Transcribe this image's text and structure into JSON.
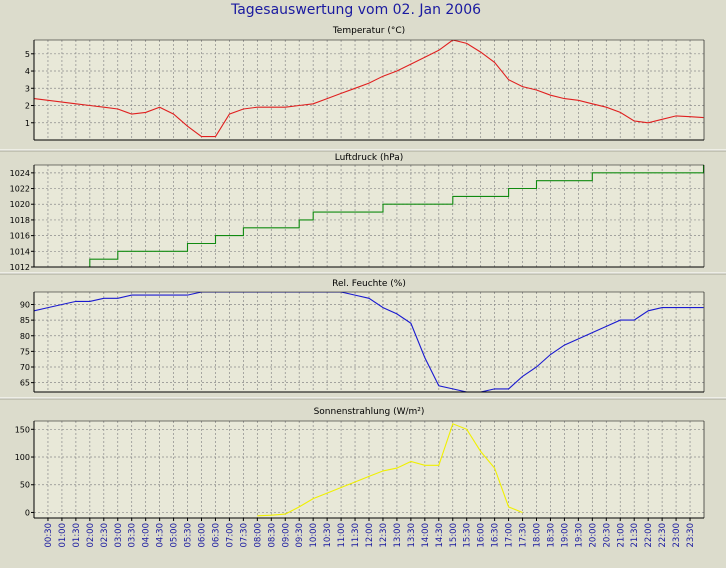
{
  "title": "Tagesauswertung vom 02. Jan 2006",
  "colors": {
    "background": "#dcdccc",
    "plot_background": "#e8e8d8",
    "title_text": "#1a1aa0",
    "axis_text": "#000000",
    "time_label_text": "#1a1aa0",
    "grid": "#8a8a8a"
  },
  "time_labels": [
    "00:30",
    "01:00",
    "01:30",
    "02:00",
    "02:30",
    "03:00",
    "03:30",
    "04:00",
    "04:30",
    "05:00",
    "05:30",
    "06:00",
    "06:30",
    "07:00",
    "07:30",
    "08:00",
    "08:30",
    "09:00",
    "09:30",
    "10:00",
    "10:30",
    "11:00",
    "11:30",
    "12:00",
    "12:30",
    "13:00",
    "13:30",
    "14:00",
    "14:30",
    "15:00",
    "15:30",
    "16:00",
    "16:30",
    "17:00",
    "17:30",
    "18:00",
    "18:30",
    "19:00",
    "19:30",
    "20:00",
    "20:30",
    "21:00",
    "21:30",
    "22:00",
    "22:30",
    "23:00",
    "23:30"
  ],
  "chart_data": [
    {
      "type": "line",
      "title": "Temperatur (°C)",
      "color": "#e02020",
      "ylim": [
        0,
        5.8
      ],
      "yticks": [
        1,
        2,
        3,
        4,
        5
      ],
      "grid": true,
      "x": [
        "00:00",
        "00:30",
        "01:00",
        "01:30",
        "02:00",
        "02:30",
        "03:00",
        "03:30",
        "04:00",
        "04:30",
        "05:00",
        "05:30",
        "06:00",
        "06:30",
        "07:00",
        "07:30",
        "08:00",
        "08:30",
        "09:00",
        "09:30",
        "10:00",
        "10:30",
        "11:00",
        "11:30",
        "12:00",
        "12:30",
        "13:00",
        "13:30",
        "14:00",
        "14:30",
        "15:00",
        "15:30",
        "16:00",
        "16:30",
        "17:00",
        "17:30",
        "18:00",
        "18:30",
        "19:00",
        "19:30",
        "20:00",
        "20:30",
        "21:00",
        "21:30",
        "22:00",
        "22:30",
        "23:00",
        "23:30",
        "23:59"
      ],
      "values": [
        2.4,
        2.3,
        2.2,
        2.1,
        2.0,
        1.9,
        1.8,
        1.5,
        1.6,
        1.9,
        1.5,
        0.8,
        0.2,
        0.2,
        1.5,
        1.8,
        1.9,
        1.9,
        1.9,
        2.0,
        2.1,
        2.4,
        2.7,
        3.0,
        3.3,
        3.7,
        4.0,
        4.4,
        4.8,
        5.2,
        5.8,
        5.6,
        5.1,
        4.5,
        3.5,
        3.1,
        2.9,
        2.6,
        2.4,
        2.3,
        2.1,
        1.9,
        1.6,
        1.1,
        1.0,
        1.2,
        1.4,
        1.35,
        1.3
      ]
    },
    {
      "type": "line",
      "title": "Luftdruck (hPa)",
      "color": "#108a10",
      "ylim": [
        1012,
        1025
      ],
      "yticks": [
        1012,
        1014,
        1016,
        1018,
        1020,
        1022,
        1024
      ],
      "grid": true,
      "step": true,
      "x": [
        "00:00",
        "01:30",
        "02:00",
        "02:30",
        "03:00",
        "03:30",
        "04:00",
        "04:30",
        "05:00",
        "05:30",
        "06:00",
        "06:30",
        "07:00",
        "07:30",
        "08:00",
        "08:30",
        "09:00",
        "09:30",
        "10:00",
        "10:30",
        "11:00",
        "11:30",
        "12:00",
        "12:30",
        "13:00",
        "13:30",
        "14:00",
        "14:30",
        "15:00",
        "15:30",
        "16:00",
        "16:30",
        "17:00",
        "17:30",
        "18:00",
        "18:30",
        "19:00",
        "19:30",
        "20:00",
        "20:30",
        "21:00",
        "21:30",
        "22:00",
        "22:30",
        "23:00",
        "23:30",
        "23:59"
      ],
      "values": [
        1011,
        1012,
        1013,
        1013,
        1014,
        1014,
        1014,
        1014,
        1014,
        1015,
        1015,
        1016,
        1016,
        1017,
        1017,
        1017,
        1017,
        1018,
        1019,
        1019,
        1019,
        1019,
        1019,
        1020,
        1020,
        1020,
        1020,
        1020,
        1021,
        1021,
        1021,
        1021,
        1022,
        1022,
        1023,
        1023,
        1023,
        1023,
        1024,
        1024,
        1024,
        1024,
        1024,
        1024,
        1024,
        1024,
        1025
      ]
    },
    {
      "type": "line",
      "title": "Rel. Feuchte (%)",
      "color": "#1a1ad0",
      "ylim": [
        62,
        94
      ],
      "yticks": [
        65,
        70,
        75,
        80,
        85,
        90
      ],
      "grid": true,
      "x": [
        "00:00",
        "00:30",
        "01:00",
        "01:30",
        "02:00",
        "02:30",
        "03:00",
        "03:30",
        "04:00",
        "04:30",
        "05:00",
        "05:30",
        "06:00",
        "06:30",
        "07:00",
        "07:30",
        "08:00",
        "08:30",
        "09:00",
        "09:30",
        "10:00",
        "10:30",
        "11:00",
        "11:30",
        "12:00",
        "12:30",
        "13:00",
        "13:30",
        "14:00",
        "14:30",
        "15:00",
        "15:30",
        "16:00",
        "16:30",
        "17:00",
        "17:30",
        "18:00",
        "18:30",
        "19:00",
        "19:30",
        "20:00",
        "20:30",
        "21:00",
        "21:30",
        "22:00",
        "22:30",
        "23:00",
        "23:30",
        "23:59"
      ],
      "values": [
        88,
        89,
        90,
        91,
        91,
        92,
        92,
        93,
        93,
        93,
        93,
        93,
        94,
        94,
        94,
        94,
        94,
        94,
        94,
        94,
        94,
        94,
        94,
        93,
        92,
        89,
        87,
        84,
        73,
        64,
        63,
        62,
        62,
        63,
        63,
        67,
        70,
        74,
        77,
        79,
        81,
        83,
        85,
        85,
        88,
        89,
        89,
        89,
        89
      ]
    },
    {
      "type": "line",
      "title": "Sonnenstrahlung (W/m²)",
      "color": "#f0f000",
      "ylim": [
        -10,
        165
      ],
      "yticks": [
        0,
        50,
        100,
        150
      ],
      "grid": true,
      "x": [
        "08:00",
        "08:30",
        "09:00",
        "09:30",
        "10:00",
        "10:30",
        "11:00",
        "11:30",
        "12:00",
        "12:30",
        "13:00",
        "13:30",
        "14:00",
        "14:30",
        "15:00",
        "15:30",
        "16:00",
        "16:30",
        "17:00",
        "17:30"
      ],
      "values": [
        -6,
        -5,
        -3,
        10,
        25,
        35,
        45,
        55,
        65,
        75,
        80,
        92,
        85,
        85,
        160,
        150,
        110,
        80,
        10,
        0
      ]
    }
  ]
}
